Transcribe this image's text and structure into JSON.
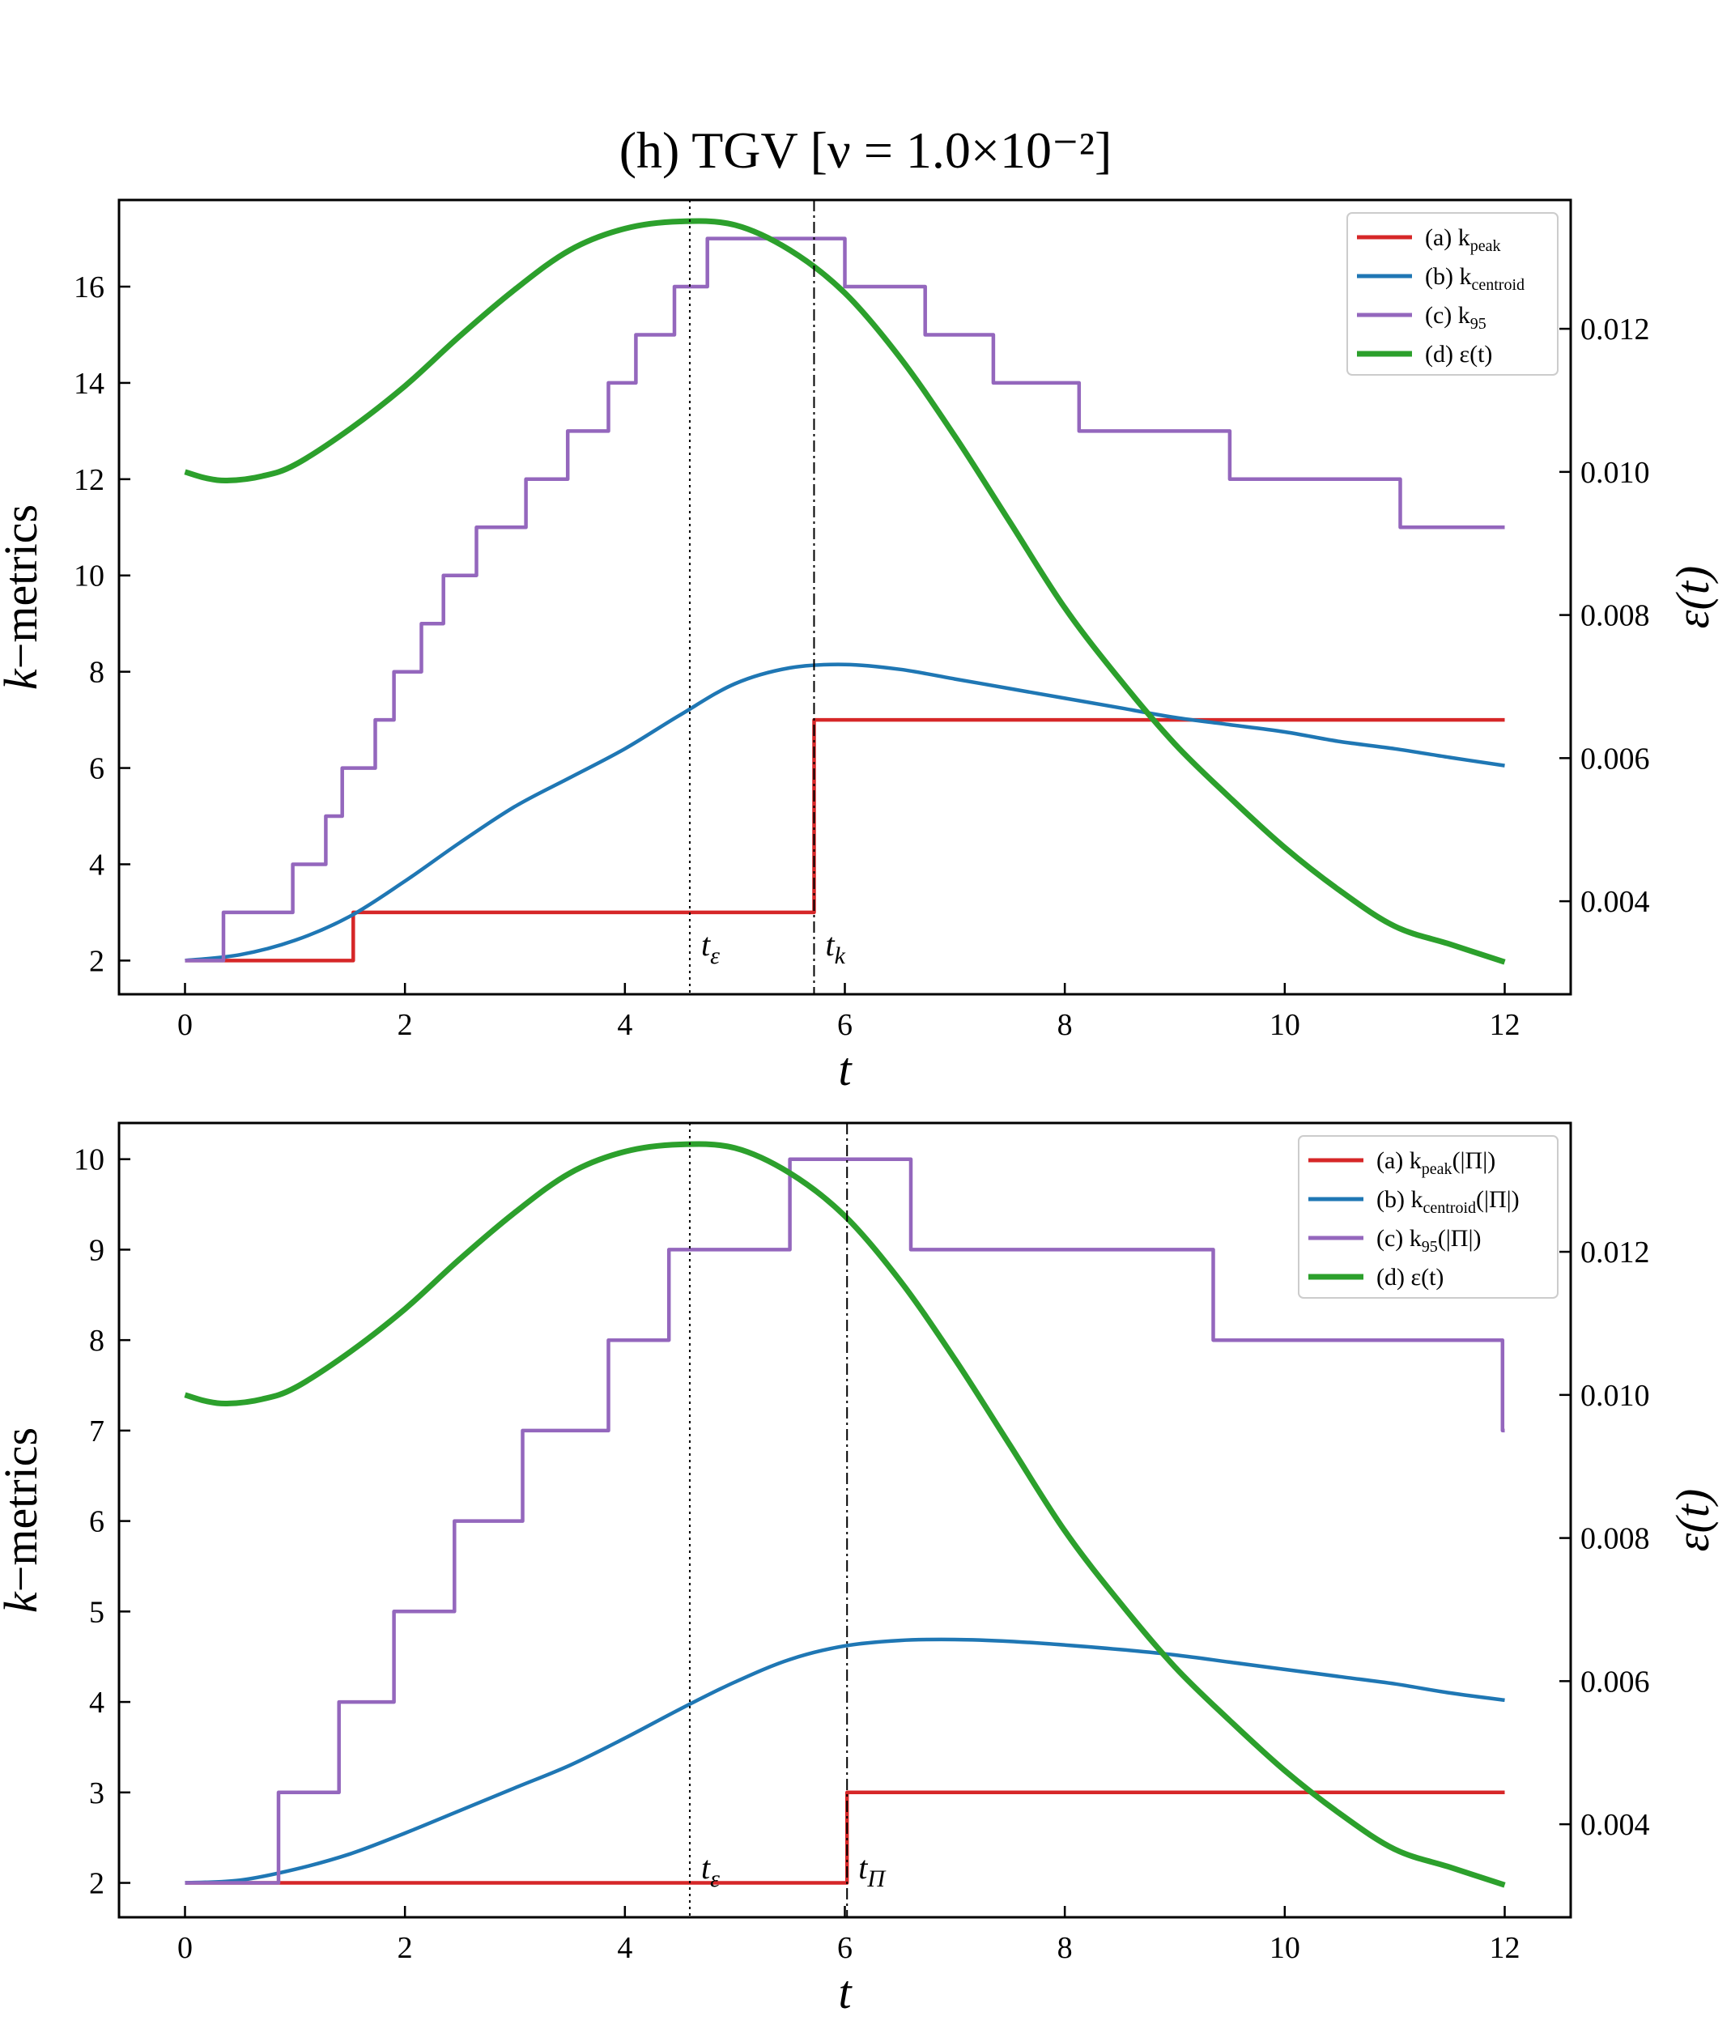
{
  "title": "(h) TGV [ν = 1.0×10⁻²]",
  "colors": {
    "peak": "#d62728",
    "centroid": "#1f77b4",
    "k95": "#9467bd",
    "eps": "#2ca02c"
  },
  "chart_data": [
    {
      "type": "line",
      "id": "top",
      "xlabel": "t",
      "ylabel": "k−metrics",
      "y2label": "ε(t)",
      "xlim": [
        -0.6,
        12.6
      ],
      "ylim": [
        1.3,
        17.8
      ],
      "y2lim": [
        0.0027,
        0.0138
      ],
      "xticks": [
        0,
        2,
        4,
        6,
        8,
        10,
        12
      ],
      "yticks": [
        2,
        4,
        6,
        8,
        10,
        12,
        14,
        16
      ],
      "y2ticks": [
        0.004,
        0.006,
        0.008,
        0.01,
        0.012
      ],
      "y2ticklabels": [
        "0.004",
        "0.006",
        "0.008",
        "0.010",
        "0.012"
      ],
      "vlines": [
        {
          "x": 4.59,
          "style": "dotted",
          "label": "t",
          "sub": "ε"
        },
        {
          "x": 5.72,
          "style": "dashdot",
          "label": "t",
          "sub": "k"
        }
      ],
      "legend": [
        {
          "prefix": "(a) k",
          "sub": "peak",
          "suffix": ""
        },
        {
          "prefix": "(b) k",
          "sub": "centroid",
          "suffix": ""
        },
        {
          "prefix": "(c) k",
          "sub": "95",
          "suffix": ""
        },
        {
          "prefix": "(d) ε(t)",
          "sub": "",
          "suffix": ""
        }
      ],
      "legend_position": "top-right",
      "series": [
        {
          "name": "(a) k_peak",
          "step": true,
          "axis": "left",
          "x": [
            0,
            1.53,
            5.72,
            12
          ],
          "values": [
            2,
            3,
            7,
            7
          ]
        },
        {
          "name": "(b) k_centroid",
          "step": false,
          "axis": "left",
          "x": [
            0,
            0.5,
            1.0,
            1.5,
            2.0,
            2.5,
            3.0,
            3.5,
            4.0,
            4.5,
            5.0,
            5.5,
            6.0,
            6.5,
            7.0,
            7.5,
            8.0,
            8.5,
            9.0,
            9.5,
            10.0,
            10.5,
            11.0,
            11.5,
            12.0
          ],
          "values": [
            2.0,
            2.12,
            2.42,
            2.92,
            3.65,
            4.45,
            5.2,
            5.8,
            6.4,
            7.1,
            7.75,
            8.08,
            8.15,
            8.05,
            7.85,
            7.65,
            7.45,
            7.25,
            7.05,
            6.9,
            6.75,
            6.55,
            6.4,
            6.22,
            6.05
          ]
        },
        {
          "name": "(c) k_95",
          "step": true,
          "axis": "left",
          "x": [
            0,
            0.35,
            0.98,
            1.28,
            1.43,
            1.73,
            1.9,
            2.15,
            2.35,
            2.65,
            3.1,
            3.48,
            3.85,
            4.1,
            4.45,
            4.75,
            6.0,
            6.73,
            7.35,
            8.13,
            9.5,
            11.05,
            12.0
          ],
          "values": [
            2,
            3,
            4,
            5,
            6,
            7,
            8,
            9,
            10,
            11,
            12,
            13,
            14,
            15,
            16,
            17,
            16,
            15,
            14,
            13,
            12,
            11,
            11
          ]
        },
        {
          "name": "(d) ε(t)",
          "step": false,
          "axis": "right",
          "x": [
            0,
            0.2,
            0.4,
            0.7,
            1.0,
            1.5,
            2.0,
            2.5,
            3.0,
            3.5,
            4.0,
            4.5,
            5.0,
            5.5,
            6.0,
            6.5,
            7.0,
            7.5,
            8.0,
            8.5,
            9.0,
            9.5,
            10.0,
            10.5,
            11.0,
            11.5,
            12.0
          ],
          "values": [
            0.01,
            0.00991,
            0.00988,
            0.00994,
            0.0101,
            0.0106,
            0.0112,
            0.0119,
            0.01255,
            0.0131,
            0.0134,
            0.0135,
            0.01345,
            0.0131,
            0.0125,
            0.0116,
            0.0105,
            0.0093,
            0.0081,
            0.0071,
            0.0062,
            0.00545,
            0.00475,
            0.00415,
            0.00365,
            0.0034,
            0.00315
          ]
        }
      ]
    },
    {
      "type": "line",
      "id": "bottom",
      "xlabel": "t",
      "ylabel": "k−metrics",
      "y2label": "ε(t)",
      "xlim": [
        -0.6,
        12.6
      ],
      "ylim": [
        1.62,
        10.4
      ],
      "y2lim": [
        0.0027,
        0.0138
      ],
      "xticks": [
        0,
        2,
        4,
        6,
        8,
        10,
        12
      ],
      "yticks": [
        2,
        3,
        4,
        5,
        6,
        7,
        8,
        9,
        10
      ],
      "y2ticks": [
        0.004,
        0.006,
        0.008,
        0.01,
        0.012
      ],
      "y2ticklabels": [
        "0.004",
        "0.006",
        "0.008",
        "0.010",
        "0.012"
      ],
      "vlines": [
        {
          "x": 4.59,
          "style": "dotted",
          "label": "t",
          "sub": "ε"
        },
        {
          "x": 6.02,
          "style": "dashdot",
          "label": "t",
          "sub": "Π"
        }
      ],
      "legend": [
        {
          "prefix": "(a) k",
          "sub": "peak",
          "suffix": "(|Π|)"
        },
        {
          "prefix": "(b) k",
          "sub": "centroid",
          "suffix": "(|Π|)"
        },
        {
          "prefix": "(c) k",
          "sub": "95",
          "suffix": "(|Π|)"
        },
        {
          "prefix": "(d) ε(t)",
          "sub": "",
          "suffix": ""
        }
      ],
      "legend_position": "top-right",
      "series": [
        {
          "name": "(a) k_peak(|Π|)",
          "step": true,
          "axis": "left",
          "x": [
            0,
            6.02,
            12
          ],
          "values": [
            2,
            3,
            3
          ]
        },
        {
          "name": "(b) k_centroid(|Π|)",
          "step": false,
          "axis": "left",
          "x": [
            0,
            0.5,
            1.0,
            1.5,
            2.0,
            2.5,
            3.0,
            3.5,
            4.0,
            4.5,
            5.0,
            5.5,
            6.0,
            6.5,
            7.0,
            7.5,
            8.0,
            8.5,
            9.0,
            9.5,
            10.0,
            10.5,
            11.0,
            11.5,
            12.0
          ],
          "values": [
            2.0,
            2.03,
            2.15,
            2.32,
            2.55,
            2.8,
            3.05,
            3.3,
            3.6,
            3.92,
            4.22,
            4.47,
            4.62,
            4.68,
            4.69,
            4.67,
            4.63,
            4.58,
            4.52,
            4.44,
            4.36,
            4.28,
            4.2,
            4.1,
            4.02
          ]
        },
        {
          "name": "(c) k_95(|Π|)",
          "step": true,
          "axis": "left",
          "x": [
            0,
            0.85,
            1.4,
            1.9,
            2.45,
            3.07,
            3.85,
            4.4,
            5.5,
            6.6,
            9.35,
            11.98,
            12.0
          ],
          "values": [
            2,
            3,
            4,
            5,
            6,
            7,
            8,
            9,
            10,
            9,
            8,
            7,
            7
          ]
        },
        {
          "name": "(d) ε(t)",
          "step": false,
          "axis": "right",
          "x": [
            0,
            0.2,
            0.4,
            0.7,
            1.0,
            1.5,
            2.0,
            2.5,
            3.0,
            3.5,
            4.0,
            4.5,
            5.0,
            5.5,
            6.0,
            6.5,
            7.0,
            7.5,
            8.0,
            8.5,
            9.0,
            9.5,
            10.0,
            10.5,
            11.0,
            11.5,
            12.0
          ],
          "values": [
            0.01,
            0.00991,
            0.00988,
            0.00994,
            0.0101,
            0.0106,
            0.0112,
            0.0119,
            0.01255,
            0.0131,
            0.0134,
            0.0135,
            0.01345,
            0.0131,
            0.0125,
            0.0116,
            0.0105,
            0.0093,
            0.0081,
            0.0071,
            0.0062,
            0.00545,
            0.00475,
            0.00415,
            0.00365,
            0.0034,
            0.00315
          ]
        }
      ]
    }
  ]
}
